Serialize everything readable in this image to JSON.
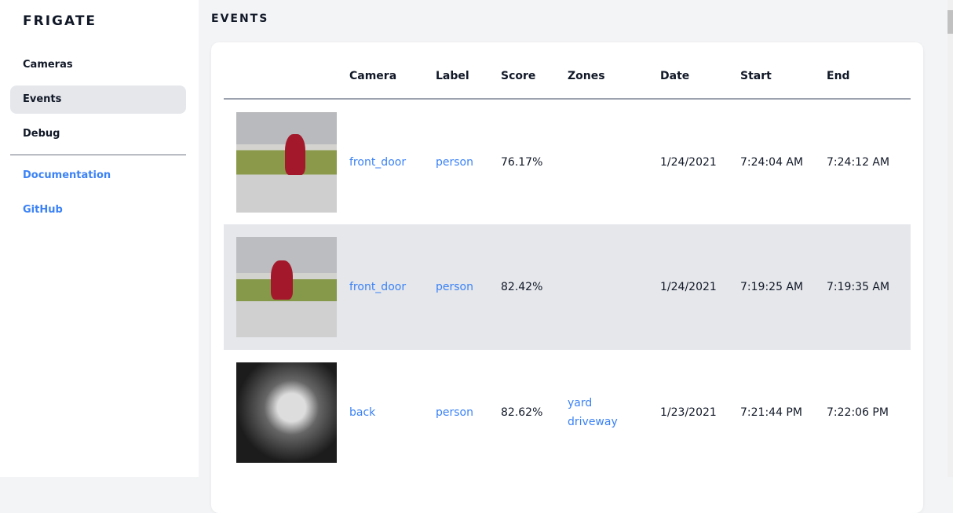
{
  "sidebar": {
    "brand": "FRIGATE",
    "items": [
      {
        "label": "Cameras"
      },
      {
        "label": "Events",
        "active": true
      },
      {
        "label": "Debug"
      }
    ],
    "links": [
      {
        "label": "Documentation"
      },
      {
        "label": "GitHub"
      }
    ]
  },
  "page": {
    "title": "EVENTS"
  },
  "table": {
    "headers": [
      "",
      "Camera",
      "Label",
      "Score",
      "Zones",
      "Date",
      "Start",
      "End"
    ],
    "rows": [
      {
        "camera": "front_door",
        "label": "person",
        "score": "76.17%",
        "zones": [
          "",
          ""
        ],
        "date": "1/24/2021",
        "start": "7:24:04 AM",
        "end": "7:24:12 AM"
      },
      {
        "camera": "front_door",
        "label": "person",
        "score": "82.42%",
        "zones": [
          "",
          ""
        ],
        "date": "1/24/2021",
        "start": "7:19:25 AM",
        "end": "7:19:35 AM"
      },
      {
        "camera": "back",
        "label": "person",
        "score": "82.62%",
        "zones": [
          "yard",
          "driveway"
        ],
        "date": "1/23/2021",
        "start": "7:21:44 PM",
        "end": "7:22:06 PM"
      }
    ]
  },
  "colors": {
    "accent": "#3b82f6",
    "active_bg": "#e5e7eb",
    "page_bg": "#f3f4f6"
  }
}
